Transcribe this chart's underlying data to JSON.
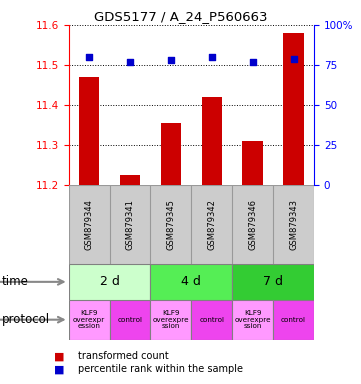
{
  "title": "GDS5177 / A_24_P560663",
  "samples": [
    "GSM879344",
    "GSM879341",
    "GSM879345",
    "GSM879342",
    "GSM879346",
    "GSM879343"
  ],
  "bar_values": [
    11.47,
    11.225,
    11.355,
    11.42,
    11.31,
    11.58
  ],
  "bar_bottom": 11.2,
  "dot_values": [
    80,
    77,
    78,
    80,
    77,
    79
  ],
  "dot_scale_max": 100,
  "ylim_left": [
    11.2,
    11.6
  ],
  "ylim_right": [
    0,
    100
  ],
  "yticks_left": [
    11.2,
    11.3,
    11.4,
    11.5,
    11.6
  ],
  "yticks_right": [
    0,
    25,
    50,
    75,
    100
  ],
  "bar_color": "#cc0000",
  "dot_color": "#0000cc",
  "bg_color": "#ffffff",
  "time_groups": [
    {
      "label": "2 d",
      "span": [
        0,
        2
      ],
      "color": "#ccffcc"
    },
    {
      "label": "4 d",
      "span": [
        2,
        4
      ],
      "color": "#55ee55"
    },
    {
      "label": "7 d",
      "span": [
        4,
        6
      ],
      "color": "#33cc33"
    }
  ],
  "protocol_groups": [
    {
      "label": "KLF9\noverexpr\nession",
      "span": [
        0,
        1
      ],
      "color": "#ff99ff"
    },
    {
      "label": "control",
      "span": [
        1,
        2
      ],
      "color": "#ee44ee"
    },
    {
      "label": "KLF9\noverexpre\nssion",
      "span": [
        2,
        3
      ],
      "color": "#ff99ff"
    },
    {
      "label": "control",
      "span": [
        3,
        4
      ],
      "color": "#ee44ee"
    },
    {
      "label": "KLF9\noverexpre\nssion",
      "span": [
        4,
        5
      ],
      "color": "#ff99ff"
    },
    {
      "label": "control",
      "span": [
        5,
        6
      ],
      "color": "#ee44ee"
    }
  ],
  "legend_bar_label": "transformed count",
  "legend_dot_label": "percentile rank within the sample",
  "time_label": "time",
  "protocol_label": "protocol",
  "sample_row_color": "#cccccc",
  "sample_border_color": "#999999"
}
